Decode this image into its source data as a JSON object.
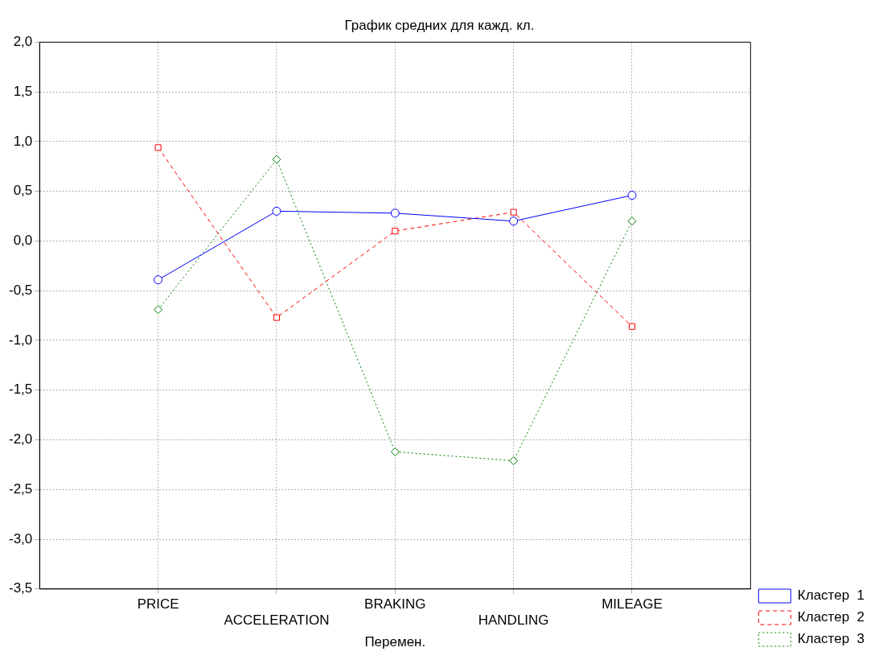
{
  "chart_data": {
    "type": "line",
    "title": "График средних для кажд. кл.",
    "xlabel": "Перемен.",
    "categories": [
      "PRICE",
      "ACCELERATION",
      "BRAKING",
      "HANDLING",
      "MILEAGE"
    ],
    "series": [
      {
        "name": "Кластер  1",
        "color": "#0000ff",
        "values": [
          -0.39,
          0.3,
          0.28,
          0.2,
          0.46
        ],
        "marker": "circle",
        "line_style": "solid"
      },
      {
        "name": "Кластер  2",
        "color": "#ff0000",
        "values": [
          0.94,
          -0.77,
          0.1,
          0.29,
          -0.86
        ],
        "marker": "square",
        "line_style": "dashed"
      },
      {
        "name": "Кластер  3",
        "color": "#008000",
        "values": [
          -0.69,
          0.82,
          -2.12,
          -2.21,
          0.2
        ],
        "marker": "diamond",
        "line_style": "dotted"
      }
    ],
    "ylim": [
      -3.5,
      2
    ],
    "yticks": [
      {
        "value": 2,
        "label": "2,0"
      },
      {
        "value": 1.5,
        "label": "1,5"
      },
      {
        "value": 1,
        "label": "1,0"
      },
      {
        "value": 0.5,
        "label": "0,5"
      },
      {
        "value": 0,
        "label": "0,0"
      },
      {
        "value": -0.5,
        "label": "-0,5"
      },
      {
        "value": -1,
        "label": "-1,0"
      },
      {
        "value": -1.5,
        "label": "-1,5"
      },
      {
        "value": -2,
        "label": "-2,0"
      },
      {
        "value": -2.5,
        "label": "-2,5"
      },
      {
        "value": -3,
        "label": "-3,0"
      },
      {
        "value": -3.5,
        "label": "-3,5"
      }
    ],
    "grid": true,
    "legend": "bottom right"
  }
}
